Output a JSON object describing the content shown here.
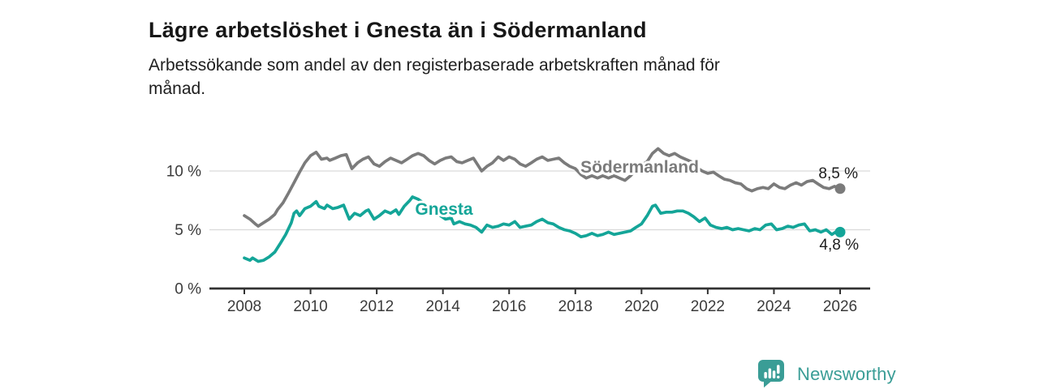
{
  "header": {
    "title": "Lägre arbetslöshet i Gnesta än i Södermanland",
    "subtitle": "Arbetssökande som andel av den registerbaserade arbetskraften månad för månad.",
    "subtitle_lines": [
      "Arbetssökande som andel av den registerbaserade arbetskraften månad för",
      "månad."
    ]
  },
  "chart_data": {
    "type": "line",
    "title": "Lägre arbetslöshet i Gnesta än i Södermanland",
    "xlabel": "",
    "ylabel": "",
    "x_ticks": [
      2008,
      2010,
      2012,
      2014,
      2016,
      2018,
      2020,
      2022,
      2024,
      2026
    ],
    "x_tick_labels": [
      "2008",
      "2010",
      "2012",
      "2014",
      "2016",
      "2018",
      "2020",
      "2022",
      "2024",
      "2026"
    ],
    "y_ticks": [
      0,
      5,
      10
    ],
    "y_tick_labels": [
      "0 %",
      "5 %",
      "10 %"
    ],
    "ylim": [
      0,
      12.8
    ],
    "xlim": [
      2007.0,
      2026.9
    ],
    "grid": "horizontal",
    "legend_position": "inline-labels-on-lines",
    "colors": {
      "axis": "#323232",
      "grid": "#d9d9d9",
      "tick_text": "#3b3b3b",
      "value_text": "#1d1d1d"
    },
    "series": [
      {
        "name": "Södermanland",
        "color": "#7b7b7b",
        "end_label": "8,5 %",
        "end_value": 8.5,
        "points": [
          [
            2008.0,
            6.2
          ],
          [
            2008.17,
            5.9
          ],
          [
            2008.33,
            5.5
          ],
          [
            2008.42,
            5.3
          ],
          [
            2008.58,
            5.6
          ],
          [
            2008.75,
            5.9
          ],
          [
            2008.92,
            6.3
          ],
          [
            2009.0,
            6.7
          ],
          [
            2009.17,
            7.3
          ],
          [
            2009.33,
            8.1
          ],
          [
            2009.5,
            9.0
          ],
          [
            2009.67,
            9.9
          ],
          [
            2009.83,
            10.7
          ],
          [
            2010.0,
            11.3
          ],
          [
            2010.17,
            11.6
          ],
          [
            2010.33,
            11.0
          ],
          [
            2010.5,
            11.1
          ],
          [
            2010.58,
            10.9
          ],
          [
            2010.75,
            11.1
          ],
          [
            2010.92,
            11.3
          ],
          [
            2011.08,
            11.4
          ],
          [
            2011.25,
            10.2
          ],
          [
            2011.42,
            10.7
          ],
          [
            2011.58,
            11.0
          ],
          [
            2011.75,
            11.2
          ],
          [
            2011.92,
            10.6
          ],
          [
            2012.08,
            10.4
          ],
          [
            2012.25,
            10.8
          ],
          [
            2012.42,
            11.1
          ],
          [
            2012.58,
            10.9
          ],
          [
            2012.75,
            10.7
          ],
          [
            2012.92,
            11.0
          ],
          [
            2013.08,
            11.3
          ],
          [
            2013.25,
            11.5
          ],
          [
            2013.42,
            11.3
          ],
          [
            2013.58,
            10.9
          ],
          [
            2013.75,
            10.6
          ],
          [
            2013.92,
            10.9
          ],
          [
            2014.08,
            11.1
          ],
          [
            2014.25,
            11.2
          ],
          [
            2014.42,
            10.8
          ],
          [
            2014.58,
            10.7
          ],
          [
            2014.75,
            10.9
          ],
          [
            2014.92,
            11.1
          ],
          [
            2015.08,
            10.4
          ],
          [
            2015.17,
            10.0
          ],
          [
            2015.33,
            10.4
          ],
          [
            2015.5,
            10.7
          ],
          [
            2015.67,
            11.2
          ],
          [
            2015.83,
            10.9
          ],
          [
            2016.0,
            11.2
          ],
          [
            2016.17,
            11.0
          ],
          [
            2016.33,
            10.6
          ],
          [
            2016.5,
            10.4
          ],
          [
            2016.67,
            10.7
          ],
          [
            2016.83,
            11.0
          ],
          [
            2017.0,
            11.2
          ],
          [
            2017.17,
            10.9
          ],
          [
            2017.33,
            11.0
          ],
          [
            2017.5,
            11.1
          ],
          [
            2017.67,
            10.7
          ],
          [
            2017.83,
            10.4
          ],
          [
            2018.0,
            10.2
          ],
          [
            2018.17,
            9.7
          ],
          [
            2018.33,
            9.4
          ],
          [
            2018.5,
            9.6
          ],
          [
            2018.67,
            9.4
          ],
          [
            2018.83,
            9.6
          ],
          [
            2019.0,
            9.4
          ],
          [
            2019.17,
            9.6
          ],
          [
            2019.33,
            9.4
          ],
          [
            2019.5,
            9.2
          ],
          [
            2019.67,
            9.6
          ],
          [
            2019.83,
            10.1
          ],
          [
            2020.0,
            10.5
          ],
          [
            2020.17,
            10.8
          ],
          [
            2020.33,
            11.5
          ],
          [
            2020.5,
            11.9
          ],
          [
            2020.67,
            11.5
          ],
          [
            2020.83,
            11.3
          ],
          [
            2021.0,
            11.5
          ],
          [
            2021.17,
            11.2
          ],
          [
            2021.33,
            11.0
          ],
          [
            2021.5,
            10.8
          ],
          [
            2021.67,
            10.3
          ],
          [
            2021.83,
            10.0
          ],
          [
            2022.0,
            9.8
          ],
          [
            2022.17,
            9.9
          ],
          [
            2022.33,
            9.6
          ],
          [
            2022.5,
            9.3
          ],
          [
            2022.67,
            9.2
          ],
          [
            2022.83,
            9.0
          ],
          [
            2023.0,
            8.9
          ],
          [
            2023.17,
            8.5
          ],
          [
            2023.33,
            8.3
          ],
          [
            2023.5,
            8.5
          ],
          [
            2023.67,
            8.6
          ],
          [
            2023.83,
            8.5
          ],
          [
            2024.0,
            8.9
          ],
          [
            2024.17,
            8.6
          ],
          [
            2024.33,
            8.5
          ],
          [
            2024.5,
            8.8
          ],
          [
            2024.67,
            9.0
          ],
          [
            2024.83,
            8.8
          ],
          [
            2025.0,
            9.1
          ],
          [
            2025.17,
            9.2
          ],
          [
            2025.33,
            8.9
          ],
          [
            2025.5,
            8.6
          ],
          [
            2025.67,
            8.5
          ],
          [
            2025.83,
            8.7
          ],
          [
            2026.0,
            8.5
          ]
        ]
      },
      {
        "name": "Gnesta",
        "color": "#14a598",
        "end_label": "4,8 %",
        "end_value": 4.8,
        "points": [
          [
            2008.0,
            2.6
          ],
          [
            2008.17,
            2.4
          ],
          [
            2008.25,
            2.6
          ],
          [
            2008.42,
            2.3
          ],
          [
            2008.58,
            2.4
          ],
          [
            2008.75,
            2.7
          ],
          [
            2008.92,
            3.1
          ],
          [
            2009.08,
            3.8
          ],
          [
            2009.25,
            4.6
          ],
          [
            2009.42,
            5.6
          ],
          [
            2009.5,
            6.4
          ],
          [
            2009.58,
            6.6
          ],
          [
            2009.67,
            6.2
          ],
          [
            2009.83,
            6.8
          ],
          [
            2010.0,
            7.0
          ],
          [
            2010.17,
            7.4
          ],
          [
            2010.25,
            7.0
          ],
          [
            2010.42,
            6.8
          ],
          [
            2010.5,
            7.1
          ],
          [
            2010.67,
            6.8
          ],
          [
            2010.83,
            6.9
          ],
          [
            2011.0,
            7.1
          ],
          [
            2011.17,
            5.9
          ],
          [
            2011.33,
            6.4
          ],
          [
            2011.5,
            6.2
          ],
          [
            2011.67,
            6.6
          ],
          [
            2011.75,
            6.7
          ],
          [
            2011.92,
            5.9
          ],
          [
            2012.08,
            6.2
          ],
          [
            2012.25,
            6.6
          ],
          [
            2012.42,
            6.4
          ],
          [
            2012.58,
            6.7
          ],
          [
            2012.67,
            6.3
          ],
          [
            2012.83,
            7.0
          ],
          [
            2013.0,
            7.5
          ],
          [
            2013.08,
            7.8
          ],
          [
            2013.25,
            7.6
          ],
          [
            2013.5,
            7.1
          ],
          [
            2013.75,
            6.6
          ],
          [
            2013.92,
            6.2
          ],
          [
            2014.08,
            5.9
          ],
          [
            2014.25,
            6.0
          ],
          [
            2014.33,
            5.5
          ],
          [
            2014.5,
            5.7
          ],
          [
            2014.67,
            5.5
          ],
          [
            2014.83,
            5.4
          ],
          [
            2015.0,
            5.2
          ],
          [
            2015.17,
            4.8
          ],
          [
            2015.33,
            5.4
          ],
          [
            2015.5,
            5.2
          ],
          [
            2015.67,
            5.3
          ],
          [
            2015.83,
            5.5
          ],
          [
            2016.0,
            5.4
          ],
          [
            2016.17,
            5.7
          ],
          [
            2016.33,
            5.2
          ],
          [
            2016.5,
            5.3
          ],
          [
            2016.67,
            5.4
          ],
          [
            2016.83,
            5.7
          ],
          [
            2017.0,
            5.9
          ],
          [
            2017.17,
            5.6
          ],
          [
            2017.33,
            5.5
          ],
          [
            2017.5,
            5.2
          ],
          [
            2017.67,
            5.0
          ],
          [
            2017.83,
            4.9
          ],
          [
            2018.0,
            4.7
          ],
          [
            2018.17,
            4.4
          ],
          [
            2018.33,
            4.5
          ],
          [
            2018.5,
            4.7
          ],
          [
            2018.67,
            4.5
          ],
          [
            2018.83,
            4.6
          ],
          [
            2019.0,
            4.8
          ],
          [
            2019.17,
            4.6
          ],
          [
            2019.33,
            4.7
          ],
          [
            2019.5,
            4.8
          ],
          [
            2019.67,
            4.9
          ],
          [
            2019.83,
            5.2
          ],
          [
            2020.0,
            5.5
          ],
          [
            2020.17,
            6.2
          ],
          [
            2020.33,
            7.0
          ],
          [
            2020.42,
            7.1
          ],
          [
            2020.58,
            6.4
          ],
          [
            2020.75,
            6.5
          ],
          [
            2020.92,
            6.5
          ],
          [
            2021.08,
            6.6
          ],
          [
            2021.25,
            6.6
          ],
          [
            2021.42,
            6.4
          ],
          [
            2021.58,
            6.1
          ],
          [
            2021.75,
            5.7
          ],
          [
            2021.92,
            6.0
          ],
          [
            2022.08,
            5.4
          ],
          [
            2022.25,
            5.2
          ],
          [
            2022.42,
            5.1
          ],
          [
            2022.58,
            5.2
          ],
          [
            2022.75,
            5.0
          ],
          [
            2022.92,
            5.1
          ],
          [
            2023.08,
            5.0
          ],
          [
            2023.25,
            4.9
          ],
          [
            2023.42,
            5.1
          ],
          [
            2023.58,
            5.0
          ],
          [
            2023.75,
            5.4
          ],
          [
            2023.92,
            5.5
          ],
          [
            2024.08,
            5.0
          ],
          [
            2024.25,
            5.1
          ],
          [
            2024.42,
            5.3
          ],
          [
            2024.58,
            5.2
          ],
          [
            2024.75,
            5.4
          ],
          [
            2024.92,
            5.5
          ],
          [
            2025.08,
            4.9
          ],
          [
            2025.25,
            5.0
          ],
          [
            2025.42,
            4.8
          ],
          [
            2025.58,
            5.0
          ],
          [
            2025.75,
            4.6
          ],
          [
            2025.92,
            4.9
          ],
          [
            2026.0,
            4.8
          ]
        ]
      }
    ]
  },
  "footer": {
    "brand": "Newsworthy",
    "brand_color": "#3a9d96",
    "logo_icon": "speech-bubble-bar-chart-icon"
  }
}
